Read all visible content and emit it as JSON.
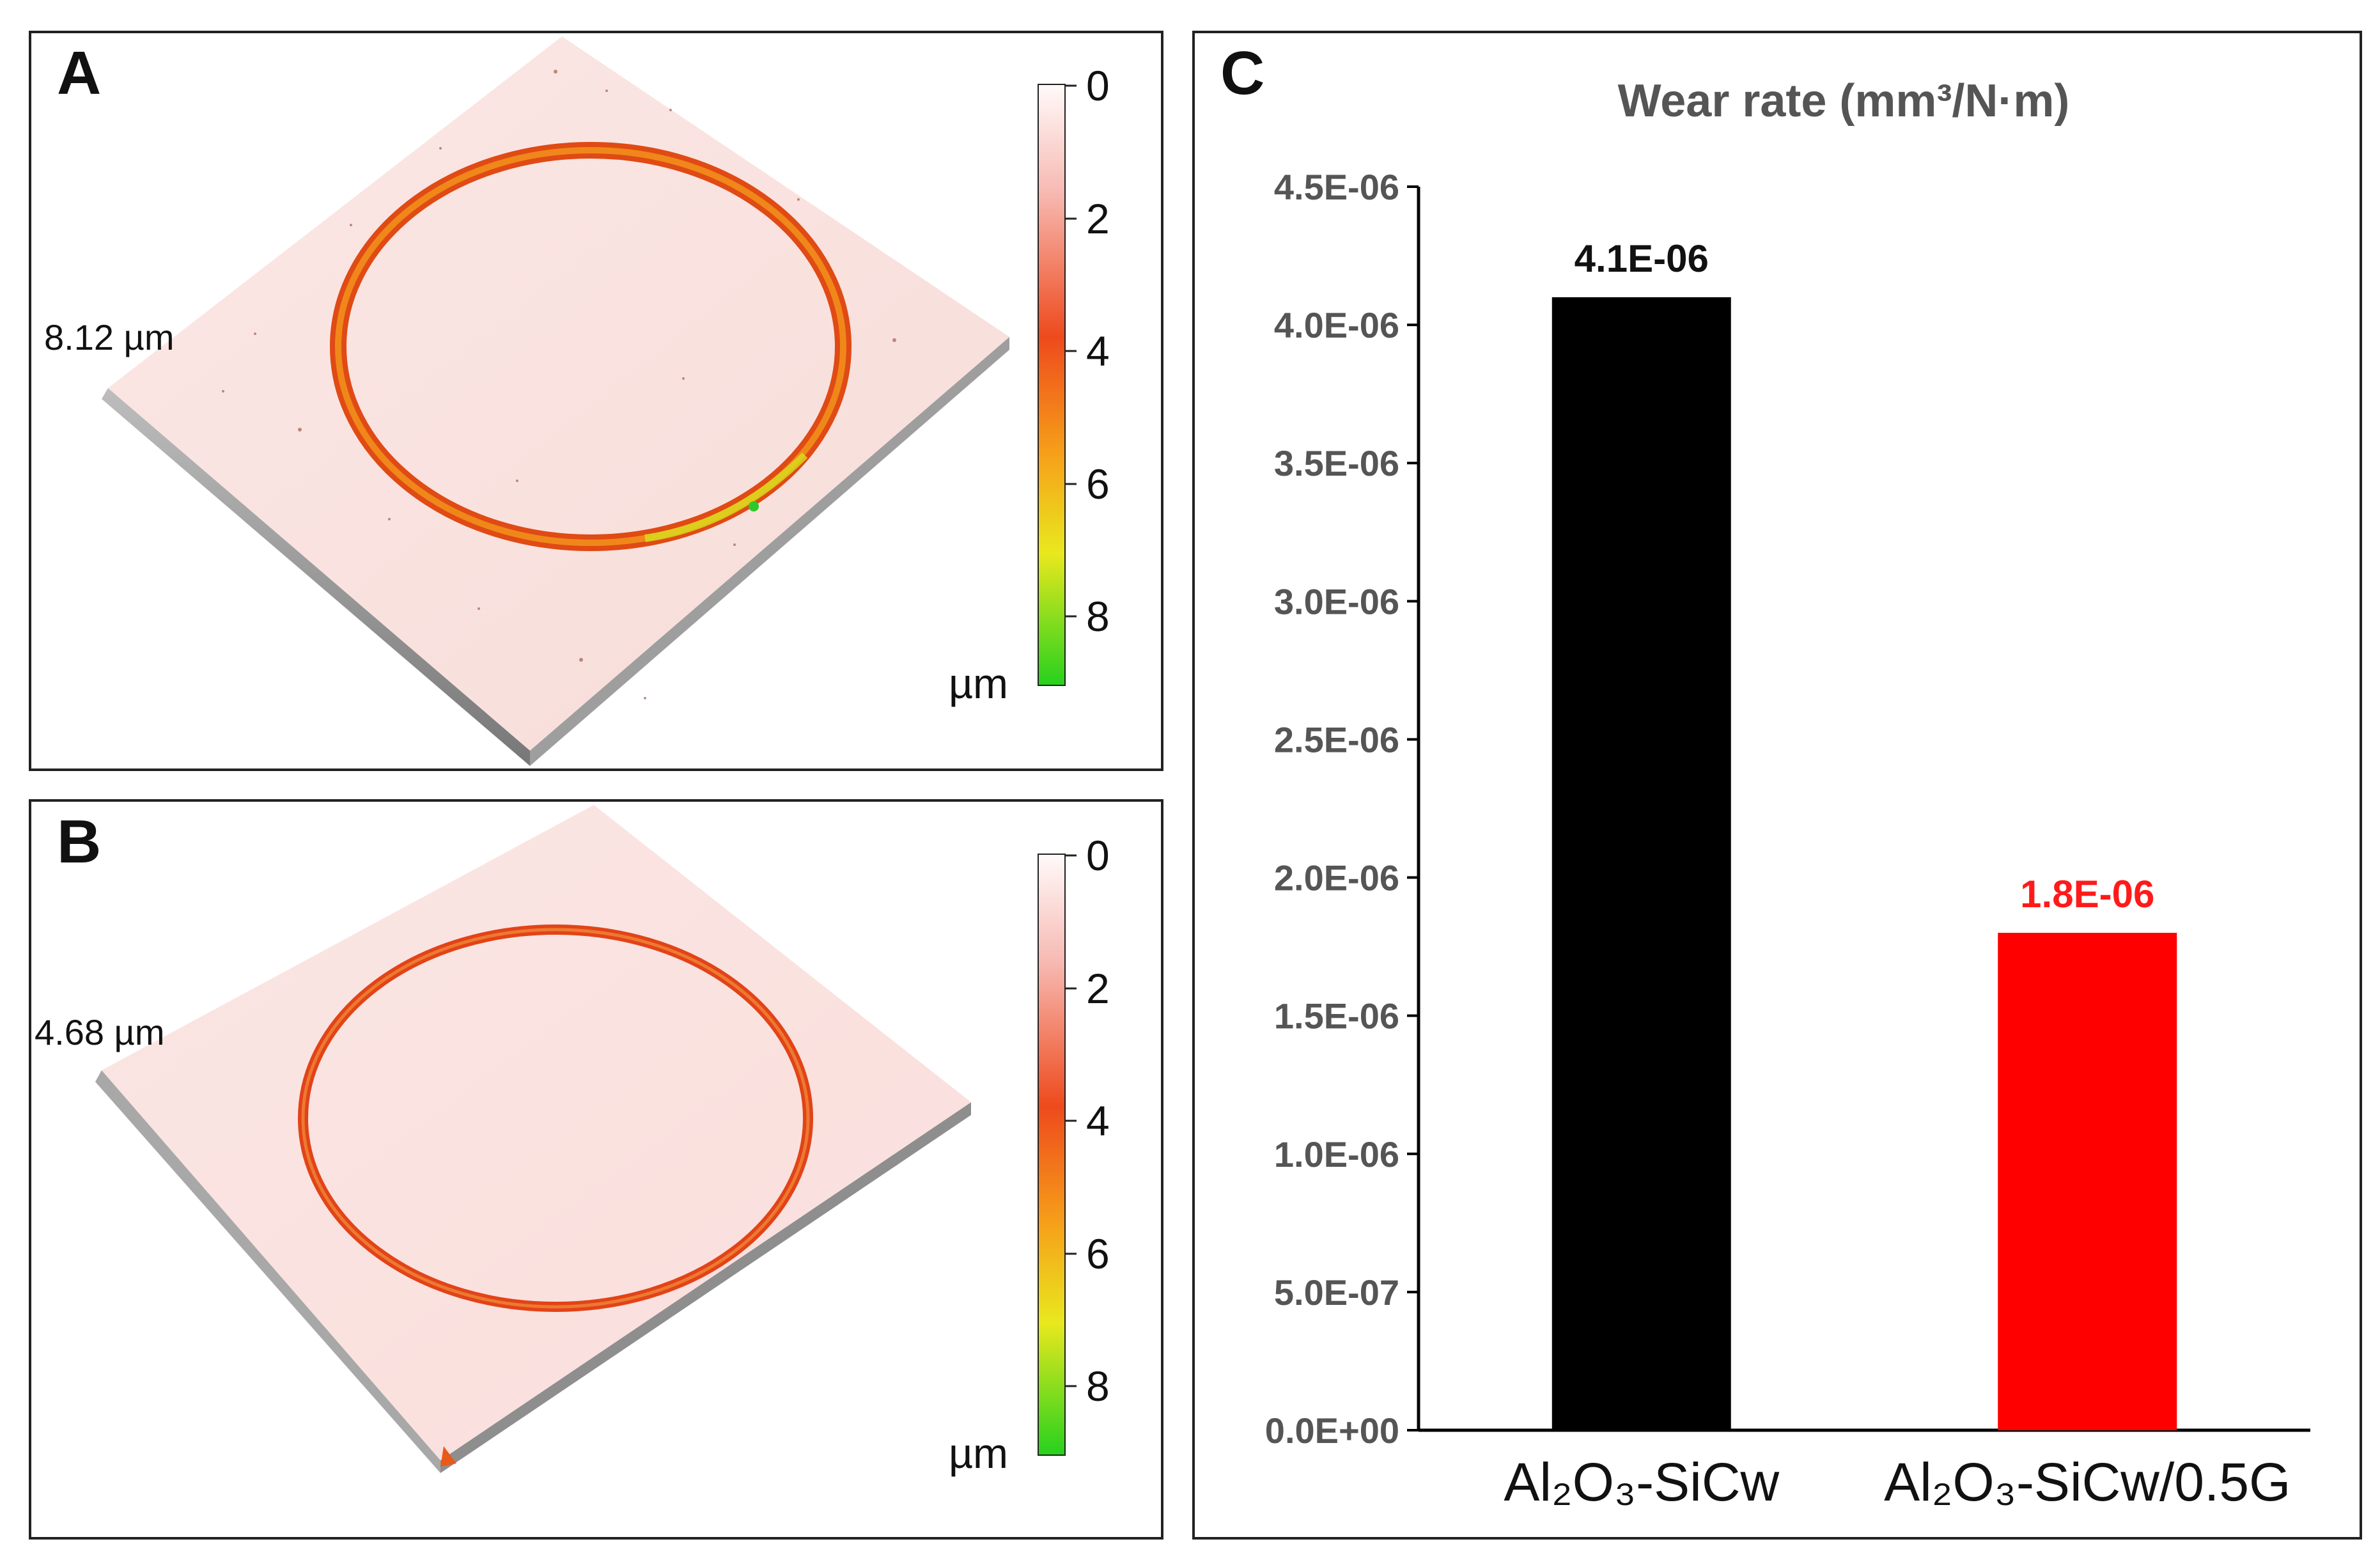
{
  "panels": {
    "a": {
      "letter": "A",
      "depth_label": "8.12 µm",
      "scale_ticks": [
        "0",
        "2",
        "4",
        "6",
        "8"
      ],
      "scale_unit": "µm"
    },
    "b": {
      "letter": "B",
      "depth_label": "4.68 µm",
      "scale_ticks": [
        "0",
        "2",
        "4",
        "6",
        "8"
      ],
      "scale_unit": "µm"
    },
    "c": {
      "letter": "C"
    }
  },
  "colors": {
    "bar_1": "#000000",
    "bar_2": "#ff0000",
    "label_1": "#111111",
    "label_2": "#ff1a1a",
    "surface": "#fbe3e1",
    "wear_track": "#ea5a1a"
  },
  "chart_data": {
    "type": "bar",
    "title": "Wear rate (mm³/N·m)",
    "categories": [
      "Al₂O₃-SiCw",
      "Al₂O₃-SiCw/0.5G"
    ],
    "values": [
      4.1e-06,
      1.8e-06
    ],
    "data_labels": [
      "4.1E-06",
      "1.8E-06"
    ],
    "ylim": [
      0,
      4.5e-06
    ],
    "yticks": [
      0,
      5e-07,
      1e-06,
      1.5e-06,
      2e-06,
      2.5e-06,
      3e-06,
      3.5e-06,
      4e-06,
      4.5e-06
    ],
    "ytick_labels": [
      "0.0E+00",
      "5.0E-07",
      "1.0E-06",
      "1.5E-06",
      "2.0E-06",
      "2.5E-06",
      "3.0E-06",
      "3.5E-06",
      "4.0E-06",
      "4.5E-06"
    ],
    "xlabel": "",
    "ylabel": "",
    "grid": false
  }
}
